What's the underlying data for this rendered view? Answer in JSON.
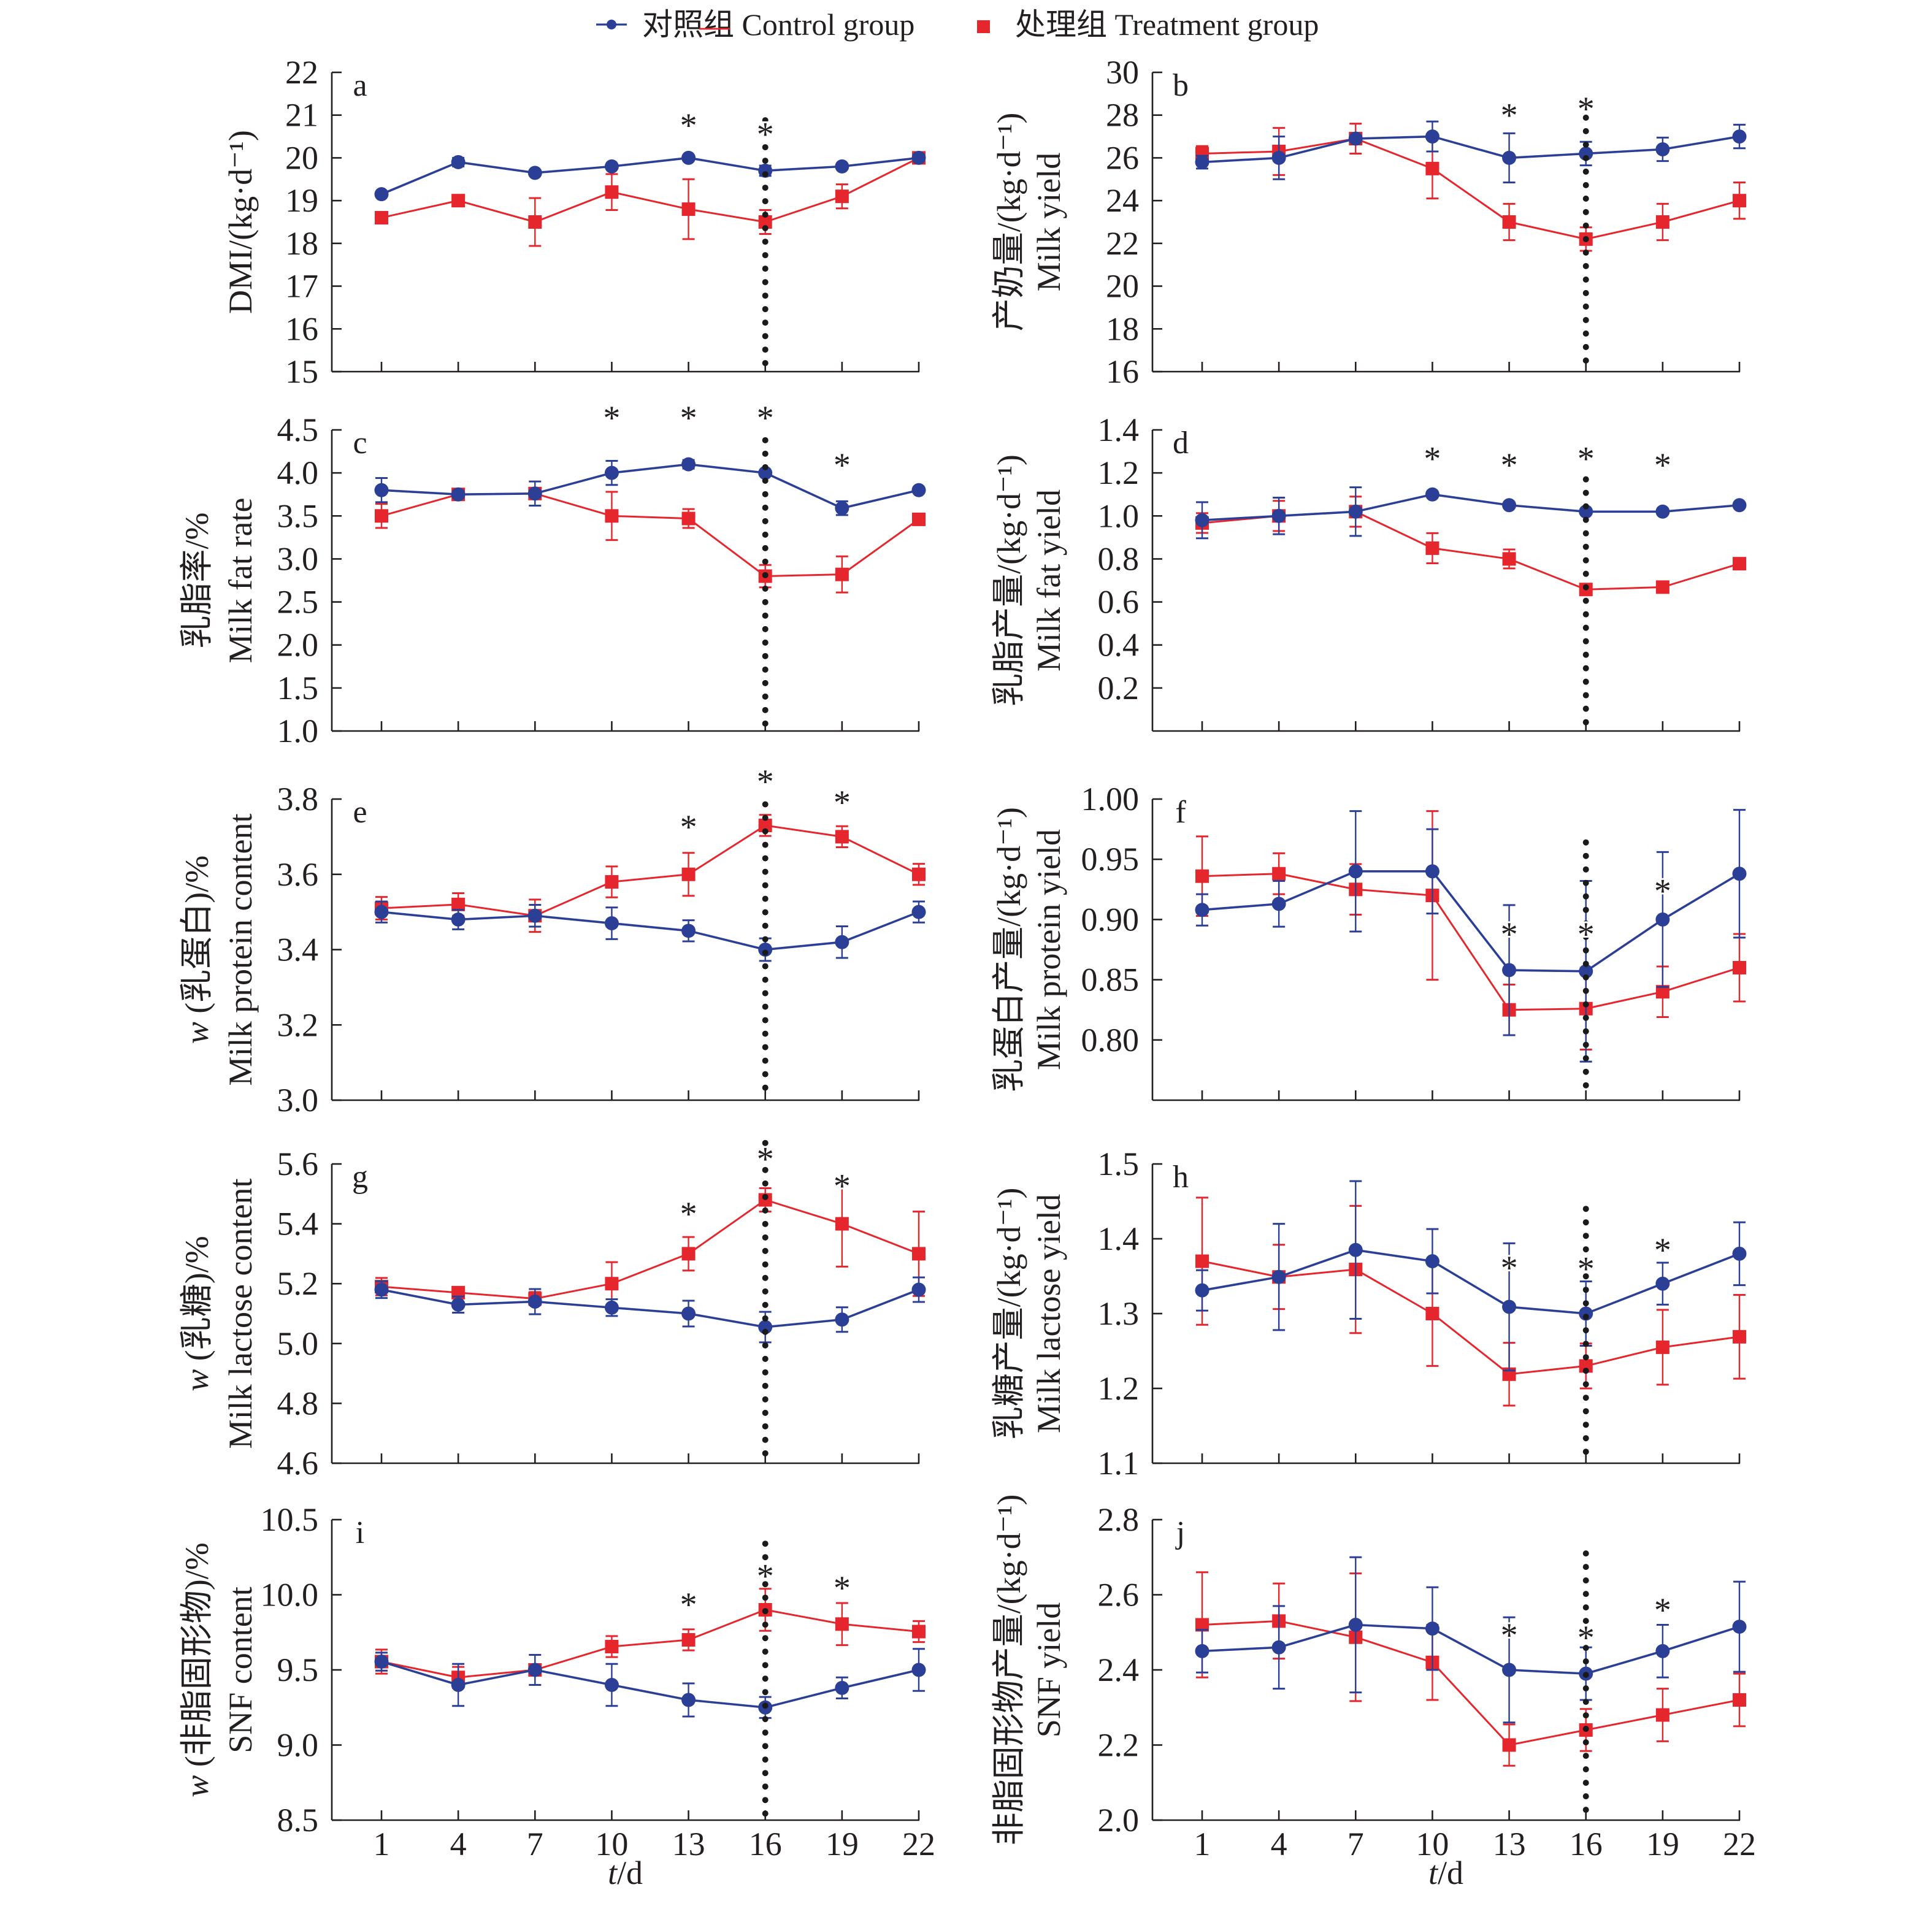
{
  "legend": {
    "items": [
      {
        "label": "对照组 Control group",
        "color": "#2b3f96",
        "marker": "circle"
      },
      {
        "label": "处理组 Treatment group",
        "color": "#e5262d",
        "marker": "square"
      }
    ]
  },
  "chart_data": [
    {
      "panel": "a",
      "type": "line",
      "ylabel": [
        {
          "text": "DMI/(kg·d⁻¹)"
        }
      ],
      "ylim": [
        15,
        22
      ],
      "yticks": [
        "15",
        "16",
        "17",
        "18",
        "19",
        "20",
        "21",
        "22"
      ],
      "x": [
        1,
        4,
        7,
        10,
        13,
        16,
        19,
        22
      ],
      "series": [
        {
          "name": "对照组 Control group",
          "values": [
            19.15,
            19.9,
            19.65,
            19.8,
            20.0,
            19.7,
            19.8,
            20.0
          ],
          "errors": [
            0,
            0.1,
            0,
            0,
            0,
            0.12,
            0,
            0
          ]
        },
        {
          "name": "处理组 Treatment group",
          "values": [
            18.6,
            19.0,
            18.5,
            19.2,
            18.8,
            18.5,
            19.1,
            20.0
          ],
          "errors": [
            0,
            0,
            0.56,
            0.42,
            0.7,
            0.28,
            0.28,
            0
          ]
        }
      ],
      "significance": [
        {
          "x": 13,
          "y": 20.88,
          "label": "*"
        },
        {
          "x": 16,
          "y": 20.67,
          "label": "*"
        }
      ],
      "reference_line": {
        "x": 16,
        "y_top": 20.88,
        "style": "dotted"
      }
    },
    {
      "panel": "b",
      "type": "line",
      "ylabel": [
        {
          "text": "产奶量/(kg·d⁻¹)"
        },
        {
          "text": "Milk yield"
        }
      ],
      "ylim": [
        16,
        30
      ],
      "yticks": [
        "16",
        "18",
        "20",
        "22",
        "24",
        "26",
        "28",
        "30"
      ],
      "x": [
        1,
        4,
        7,
        10,
        13,
        16,
        19,
        22
      ],
      "series": [
        {
          "name": "对照组 Control group",
          "values": [
            25.8,
            26.0,
            26.9,
            27.0,
            26.0,
            26.2,
            26.4,
            27.0
          ],
          "errors": [
            0.3,
            1.0,
            0.15,
            0.7,
            1.15,
            0.55,
            0.55,
            0.55
          ]
        },
        {
          "name": "处理组 Treatment group",
          "values": [
            26.2,
            26.3,
            26.9,
            25.5,
            23.0,
            22.2,
            23.0,
            24.0
          ],
          "errors": [
            0.35,
            1.1,
            0.7,
            1.4,
            0.85,
            0.55,
            0.85,
            0.85
          ]
        }
      ],
      "significance": [
        {
          "x": 13,
          "y": 28.24,
          "label": "*"
        },
        {
          "x": 16,
          "y": 28.53,
          "label": "*"
        }
      ],
      "reference_line": {
        "x": 16,
        "y_top": 27.88,
        "style": "dotted"
      }
    },
    {
      "panel": "c",
      "type": "line",
      "ylabel": [
        {
          "text": "乳脂率/%"
        },
        {
          "text": "Milk fat rate"
        }
      ],
      "ylim": [
        1.0,
        4.5
      ],
      "yticks": [
        "1.0",
        "1.5",
        "2.0",
        "2.5",
        "3.0",
        "3.5",
        "4.0",
        "4.5"
      ],
      "x": [
        1,
        4,
        7,
        10,
        13,
        16,
        19,
        22
      ],
      "series": [
        {
          "name": "对照组 Control group",
          "values": [
            3.8,
            3.75,
            3.76,
            4.0,
            4.1,
            4.0,
            3.59,
            3.8
          ],
          "errors": [
            0.14,
            0.04,
            0.14,
            0.14,
            0.05,
            0,
            0.08,
            0
          ]
        },
        {
          "name": "处理组 Treatment group",
          "values": [
            3.5,
            3.75,
            3.76,
            3.5,
            3.47,
            2.8,
            2.82,
            3.46
          ],
          "errors": [
            0.14,
            0.05,
            0.05,
            0.28,
            0.11,
            0.13,
            0.21,
            0
          ]
        }
      ],
      "significance": [
        {
          "x": 10,
          "y": 4.7,
          "label": "*"
        },
        {
          "x": 13,
          "y": 4.7,
          "label": "*"
        },
        {
          "x": 16,
          "y": 4.7,
          "label": "*"
        },
        {
          "x": 19,
          "y": 4.15,
          "label": "*"
        }
      ],
      "reference_line": {
        "x": 16,
        "y_top": 4.38,
        "style": "dotted"
      }
    },
    {
      "panel": "d",
      "type": "line",
      "ylabel": [
        {
          "text": "乳脂产量/(kg·d⁻¹)"
        },
        {
          "text": "Milk fat yield"
        }
      ],
      "ylim": [
        0,
        1.4
      ],
      "yticks": [
        "0.2",
        "0.4",
        "0.6",
        "0.8",
        "1.0",
        "1.2",
        "1.4"
      ],
      "x": [
        1,
        4,
        7,
        10,
        13,
        16,
        19,
        22
      ],
      "series": [
        {
          "name": "对照组 Control group",
          "values": [
            0.98,
            1.0,
            1.02,
            1.1,
            1.05,
            1.02,
            1.02,
            1.05
          ],
          "errors": [
            0.084,
            0.085,
            0.113,
            0,
            0,
            0,
            0,
            0
          ]
        },
        {
          "name": "处理组 Treatment group",
          "values": [
            0.967,
            1.0,
            1.02,
            0.85,
            0.8,
            0.658,
            0.669,
            0.778
          ],
          "errors": [
            0.046,
            0.07,
            0.07,
            0.07,
            0.044,
            0,
            0,
            0
          ]
        }
      ],
      "significance": [
        {
          "x": 10,
          "y": 1.29,
          "label": "*"
        },
        {
          "x": 13,
          "y": 1.26,
          "label": "*"
        },
        {
          "x": 16,
          "y": 1.29,
          "label": "*"
        },
        {
          "x": 19,
          "y": 1.26,
          "label": "*"
        }
      ],
      "reference_line": {
        "x": 16,
        "y_top": 1.17,
        "style": "dotted"
      }
    },
    {
      "panel": "e",
      "type": "line",
      "ylabel": [
        {
          "italic": "w",
          "text": " (乳蛋白)/%"
        },
        {
          "text": "Milk protein content"
        }
      ],
      "ylim": [
        3.0,
        3.8
      ],
      "yticks": [
        "3.0",
        "3.2",
        "3.4",
        "3.6",
        "3.8"
      ],
      "x": [
        1,
        4,
        7,
        10,
        13,
        16,
        19,
        22
      ],
      "series": [
        {
          "name": "对照组 Control group",
          "values": [
            3.5,
            3.48,
            3.49,
            3.47,
            3.45,
            3.4,
            3.42,
            3.5
          ],
          "errors": [
            0.028,
            0.026,
            0.029,
            0.042,
            0.028,
            0.03,
            0.042,
            0.028
          ]
        },
        {
          "name": "处理组 Treatment group",
          "values": [
            3.51,
            3.52,
            3.49,
            3.58,
            3.6,
            3.73,
            3.7,
            3.6
          ],
          "errors": [
            0.03,
            0.03,
            0.043,
            0.041,
            0.057,
            0.028,
            0.028,
            0.028
          ]
        }
      ],
      "significance": [
        {
          "x": 13,
          "y": 3.74,
          "label": "*"
        },
        {
          "x": 16,
          "y": 3.86,
          "label": "*"
        },
        {
          "x": 19,
          "y": 3.805,
          "label": "*"
        }
      ],
      "reference_line": {
        "x": 16,
        "y_top": 3.786,
        "style": "dotted"
      }
    },
    {
      "panel": "f",
      "type": "line",
      "ylabel": [
        {
          "text": "乳蛋白产量/(kg·d⁻¹)"
        },
        {
          "text": "Milk protein yield"
        }
      ],
      "ylim": [
        0.75,
        1.0
      ],
      "yticks": [
        "0.80",
        "0.85",
        "0.90",
        "0.95",
        "1.00"
      ],
      "x": [
        1,
        4,
        7,
        10,
        13,
        16,
        19,
        22
      ],
      "series": [
        {
          "name": "对照组 Control group",
          "values": [
            0.908,
            0.913,
            0.94,
            0.94,
            0.858,
            0.857,
            0.9,
            0.938
          ],
          "errors": [
            0.013,
            0.019,
            0.05,
            0.035,
            0.054,
            0.075,
            0.056,
            0.053
          ]
        },
        {
          "name": "处理组 Treatment group",
          "values": [
            0.936,
            0.938,
            0.925,
            0.92,
            0.825,
            0.826,
            0.84,
            0.86
          ],
          "errors": [
            0.033,
            0.017,
            0.021,
            0.07,
            0.021,
            0.034,
            0.021,
            0.028
          ]
        }
      ],
      "significance": [
        {
          "x": 13,
          "y": 0.892,
          "label": "*"
        },
        {
          "x": 16,
          "y": 0.892,
          "label": "*"
        },
        {
          "x": 19,
          "y": 0.928,
          "label": "*"
        }
      ],
      "reference_line": {
        "x": 16,
        "y_top": 0.964,
        "style": "dotted"
      }
    },
    {
      "panel": "g",
      "type": "line",
      "ylabel": [
        {
          "italic": "w",
          "text": " (乳糖)/%"
        },
        {
          "text": "Milk lactose content"
        }
      ],
      "ylim": [
        4.6,
        5.6
      ],
      "yticks": [
        "4.6",
        "4.8",
        "5.0",
        "5.2",
        "5.4",
        "5.6"
      ],
      "x": [
        1,
        4,
        7,
        10,
        13,
        16,
        19,
        22
      ],
      "series": [
        {
          "name": "对照组 Control group",
          "values": [
            5.18,
            5.13,
            5.14,
            5.12,
            5.1,
            5.055,
            5.08,
            5.18
          ],
          "errors": [
            0.028,
            0.027,
            0.042,
            0.028,
            0.043,
            0.051,
            0.041,
            0.041
          ]
        },
        {
          "name": "处理组 Treatment group",
          "values": [
            5.19,
            5.17,
            5.15,
            5.2,
            5.3,
            5.48,
            5.4,
            5.3
          ],
          "errors": [
            0.029,
            0.017,
            0.022,
            0.072,
            0.056,
            0.039,
            0.143,
            0.141
          ]
        }
      ],
      "significance": [
        {
          "x": 13,
          "y": 5.45,
          "label": "*"
        },
        {
          "x": 16,
          "y": 5.634,
          "label": "*"
        },
        {
          "x": 19,
          "y": 5.544,
          "label": "*"
        }
      ],
      "reference_line": {
        "x": 16,
        "y_top": 5.67,
        "style": "dotted"
      }
    },
    {
      "panel": "h",
      "type": "line",
      "ylabel": [
        {
          "text": "乳糖产量/(kg·d⁻¹)"
        },
        {
          "text": "Milk lactose yield"
        }
      ],
      "ylim": [
        1.1,
        1.5
      ],
      "yticks": [
        "1.1",
        "1.2",
        "1.3",
        "1.4",
        "1.5"
      ],
      "x": [
        1,
        4,
        7,
        10,
        13,
        16,
        19,
        22
      ],
      "series": [
        {
          "name": "对照组 Control group",
          "values": [
            1.331,
            1.349,
            1.385,
            1.37,
            1.309,
            1.3,
            1.34,
            1.38
          ],
          "errors": [
            0.027,
            0.071,
            0.092,
            0.043,
            0.085,
            0.043,
            0.028,
            0.042
          ]
        },
        {
          "name": "处理组 Treatment group",
          "values": [
            1.37,
            1.349,
            1.359,
            1.3,
            1.219,
            1.23,
            1.255,
            1.269
          ],
          "errors": [
            0.085,
            0.043,
            0.085,
            0.07,
            0.042,
            0.03,
            0.05,
            0.056
          ]
        }
      ],
      "significance": [
        {
          "x": 13,
          "y": 1.368,
          "label": "*"
        },
        {
          "x": 16,
          "y": 1.367,
          "label": "*"
        },
        {
          "x": 19,
          "y": 1.392,
          "label": "*"
        }
      ],
      "reference_line": {
        "x": 16,
        "y_top": 1.44,
        "style": "dotted"
      }
    },
    {
      "panel": "i",
      "type": "line",
      "ylabel": [
        {
          "italic": "w",
          "text": " (非脂固形物)/%"
        },
        {
          "text": "SNF content"
        }
      ],
      "ylim": [
        8.5,
        10.5
      ],
      "yticks": [
        "8.5",
        "9.0",
        "9.5",
        "10.0",
        "10.5"
      ],
      "x": [
        1,
        4,
        7,
        10,
        13,
        16,
        19,
        22
      ],
      "xtick_labels": [
        "1",
        "4",
        "7",
        "10",
        "13",
        "16",
        "19",
        "22"
      ],
      "xlabel": {
        "italic": "t",
        "text": "/d"
      },
      "series": [
        {
          "name": "对照组 Control group",
          "values": [
            9.555,
            9.4,
            9.5,
            9.4,
            9.3,
            9.25,
            9.38,
            9.5
          ],
          "errors": [
            0.06,
            0.14,
            0.1,
            0.14,
            0.11,
            0.07,
            0.07,
            0.14
          ]
        },
        {
          "name": "处理组 Treatment group",
          "values": [
            9.555,
            9.45,
            9.5,
            9.655,
            9.7,
            9.9,
            9.805,
            9.755
          ],
          "errors": [
            0.08,
            0.07,
            0.03,
            0.07,
            0.07,
            0.14,
            0.14,
            0.07
          ]
        }
      ],
      "significance": [
        {
          "x": 13,
          "y": 9.97,
          "label": "*"
        },
        {
          "x": 16,
          "y": 10.16,
          "label": "*"
        },
        {
          "x": 19,
          "y": 10.08,
          "label": "*"
        }
      ],
      "reference_line": {
        "x": 16,
        "y_top": 10.34,
        "style": "dotted"
      }
    },
    {
      "panel": "j",
      "type": "line",
      "ylabel": [
        {
          "text": "非脂固形物产量/(kg·d⁻¹)"
        },
        {
          "text": "SNF yield"
        }
      ],
      "ylim": [
        2.0,
        2.8
      ],
      "yticks": [
        "2.0",
        "2.2",
        "2.4",
        "2.6",
        "2.8"
      ],
      "x": [
        1,
        4,
        7,
        10,
        13,
        16,
        19,
        22
      ],
      "xtick_labels": [
        "1",
        "4",
        "7",
        "10",
        "13",
        "16",
        "19",
        "22"
      ],
      "xlabel": {
        "italic": "t",
        "text": "/d"
      },
      "series": [
        {
          "name": "对照组 Control group",
          "values": [
            2.45,
            2.46,
            2.52,
            2.51,
            2.4,
            2.39,
            2.45,
            2.515
          ],
          "errors": [
            0.057,
            0.11,
            0.18,
            0.11,
            0.14,
            0.07,
            0.07,
            0.12
          ]
        },
        {
          "name": "处理组 Treatment group",
          "values": [
            2.52,
            2.53,
            2.487,
            2.42,
            2.2,
            2.24,
            2.28,
            2.32
          ],
          "errors": [
            0.14,
            0.1,
            0.17,
            0.1,
            0.055,
            0.056,
            0.07,
            0.07
          ]
        }
      ],
      "significance": [
        {
          "x": 13,
          "y": 2.506,
          "label": "*"
        },
        {
          "x": 16,
          "y": 2.5,
          "label": "*"
        },
        {
          "x": 19,
          "y": 2.573,
          "label": "*"
        }
      ],
      "reference_line": {
        "x": 16,
        "y_top": 2.71,
        "style": "dotted"
      }
    }
  ]
}
